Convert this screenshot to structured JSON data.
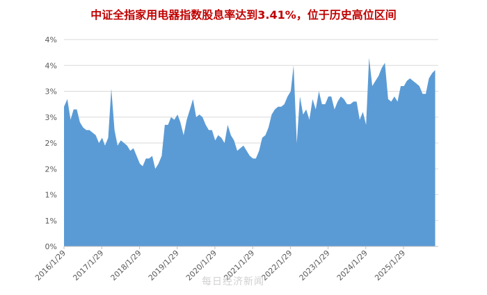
{
  "chart_data": {
    "type": "area",
    "title": "中证全指家用电器指数股息率达到3.41%，位于历史高位区间",
    "xlabel": "",
    "ylabel": "",
    "y_tick_labels": [
      "0%",
      "1%",
      "1%",
      "2%",
      "2%",
      "3%",
      "3%",
      "4%",
      "4%"
    ],
    "y_tick_values": [
      0,
      0.5,
      1.0,
      1.5,
      2.0,
      2.5,
      3.0,
      3.5,
      4.0
    ],
    "ylim": [
      0,
      4.0
    ],
    "x_tick_labels": [
      "2016/1/29",
      "2017/1/29",
      "2018/1/29",
      "2019/1/29",
      "2020/1/29",
      "2021/1/29",
      "2022/1/29",
      "2023/1/29",
      "2024/1/29",
      "2025/1/29"
    ],
    "x_range": [
      "2016/1/29",
      "2025/12/31"
    ],
    "grid": true,
    "color": "#5b9bd5",
    "series": [
      {
        "x": [
          "2016-01-29",
          "2016-03-01",
          "2016-04-01",
          "2016-05-01",
          "2016-06-01",
          "2016-07-01",
          "2016-08-01",
          "2016-09-01",
          "2016-10-01",
          "2016-11-01",
          "2016-12-01",
          "2017-01-01",
          "2017-02-01",
          "2017-03-01",
          "2017-04-01",
          "2017-05-01",
          "2017-06-01",
          "2017-07-01",
          "2017-08-01",
          "2017-09-01",
          "2017-10-01",
          "2017-11-01",
          "2017-12-01",
          "2018-01-01",
          "2018-02-01",
          "2018-03-01",
          "2018-04-01",
          "2018-05-01",
          "2018-06-01",
          "2018-07-01",
          "2018-08-01",
          "2018-09-01",
          "2018-10-01",
          "2018-11-01",
          "2018-12-01",
          "2019-01-01",
          "2019-02-01",
          "2019-03-01",
          "2019-04-01",
          "2019-05-01",
          "2019-06-01",
          "2019-07-01",
          "2019-08-01",
          "2019-09-01",
          "2019-10-01",
          "2019-11-01",
          "2019-12-01",
          "2020-01-01",
          "2020-02-01",
          "2020-03-01",
          "2020-04-01",
          "2020-05-01",
          "2020-06-01",
          "2020-07-01",
          "2020-08-01",
          "2020-09-01",
          "2020-10-01",
          "2020-11-01",
          "2020-12-01",
          "2021-01-01",
          "2021-02-01",
          "2021-03-01",
          "2021-04-01",
          "2021-05-01",
          "2021-06-01",
          "2021-07-01",
          "2021-08-01",
          "2021-09-01",
          "2021-10-01",
          "2021-11-01",
          "2021-12-01",
          "2022-01-01",
          "2022-02-01",
          "2022-03-01",
          "2022-04-01",
          "2022-05-01",
          "2022-06-01",
          "2022-07-01",
          "2022-08-01",
          "2022-09-01",
          "2022-10-01",
          "2022-11-01",
          "2022-12-01",
          "2023-01-01",
          "2023-02-01",
          "2023-03-01",
          "2023-04-01",
          "2023-05-01",
          "2023-06-01",
          "2023-07-01",
          "2023-08-01",
          "2023-09-01",
          "2023-10-01",
          "2023-11-01",
          "2023-12-01",
          "2024-01-01",
          "2024-02-01",
          "2024-03-01",
          "2024-04-01",
          "2024-05-01",
          "2024-06-01",
          "2024-07-01",
          "2024-08-01",
          "2024-09-01",
          "2024-10-01",
          "2024-11-01",
          "2024-12-01",
          "2025-01-01",
          "2025-02-01",
          "2025-03-01",
          "2025-04-01",
          "2025-05-01",
          "2025-06-01",
          "2025-07-01",
          "2025-08-01",
          "2025-09-01",
          "2025-10-01",
          "2025-11-01",
          "2025-12-01"
        ],
        "values": [
          2.7,
          2.85,
          2.45,
          2.65,
          2.65,
          2.4,
          2.3,
          2.25,
          2.25,
          2.2,
          2.15,
          2.0,
          2.1,
          1.95,
          2.1,
          3.05,
          2.25,
          1.95,
          2.05,
          2.0,
          1.95,
          1.85,
          1.9,
          1.75,
          1.6,
          1.55,
          1.7,
          1.7,
          1.75,
          1.5,
          1.6,
          1.75,
          2.35,
          2.35,
          2.5,
          2.45,
          2.55,
          2.4,
          2.15,
          2.45,
          2.65,
          2.85,
          2.5,
          2.55,
          2.5,
          2.35,
          2.25,
          2.25,
          2.05,
          2.15,
          2.1,
          2.0,
          2.35,
          2.15,
          2.05,
          1.85,
          1.9,
          1.95,
          1.85,
          1.75,
          1.7,
          1.7,
          1.85,
          2.1,
          2.15,
          2.3,
          2.55,
          2.65,
          2.7,
          2.7,
          2.75,
          2.9,
          3.0,
          3.5,
          2.0,
          2.9,
          2.55,
          2.65,
          2.45,
          2.85,
          2.65,
          3.0,
          2.75,
          2.75,
          2.9,
          2.9,
          2.65,
          2.8,
          2.9,
          2.85,
          2.75,
          2.75,
          2.8,
          2.8,
          2.45,
          2.6,
          2.35,
          3.65,
          3.1,
          3.2,
          3.3,
          3.45,
          3.55,
          2.85,
          2.8,
          2.9,
          2.8,
          3.1,
          3.1,
          3.2,
          3.25,
          3.2,
          3.15,
          3.1,
          2.95,
          2.95,
          3.25,
          3.35,
          3.41
        ]
      }
    ]
  },
  "watermark": "每日经济新闻"
}
